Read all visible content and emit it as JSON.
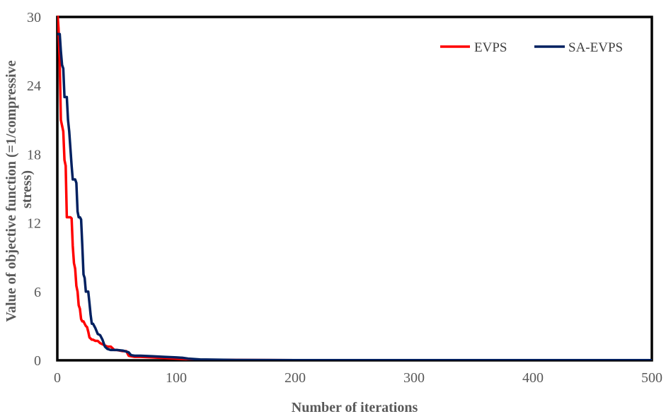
{
  "chart_data": {
    "type": "line",
    "title": "",
    "xlabel": "Number of iterations",
    "ylabel_lines": [
      "Value of objective function (=1/compressive",
      "stress)"
    ],
    "xlim": [
      0,
      500
    ],
    "ylim": [
      0,
      30
    ],
    "xticks": [
      0,
      100,
      200,
      300,
      400,
      500
    ],
    "yticks": [
      0,
      6,
      12,
      18,
      24,
      30
    ],
    "xtick_labels": [
      "0",
      "100",
      "200",
      "300",
      "400",
      "500"
    ],
    "ytick_labels": [
      "0",
      "6",
      "12",
      "18",
      "24",
      "30"
    ],
    "grid": false,
    "legend_position": "top-right",
    "series": [
      {
        "name": "EVPS",
        "color": "#ff0000",
        "x": [
          0,
          1,
          2,
          3,
          4,
          5,
          6,
          7,
          8,
          9,
          10,
          11,
          12,
          13,
          14,
          15,
          16,
          17,
          18,
          19,
          20,
          21,
          22,
          23,
          24,
          25,
          26,
          27,
          28,
          29,
          30,
          32,
          34,
          36,
          38,
          40,
          42,
          45,
          48,
          50,
          55,
          58,
          60,
          62,
          65,
          70,
          80,
          90,
          100,
          110,
          120,
          150,
          200,
          300,
          400,
          500
        ],
        "y": [
          30.5,
          29.0,
          26.0,
          21.0,
          20.5,
          20.0,
          17.5,
          17.0,
          12.5,
          12.5,
          12.5,
          12.5,
          12.4,
          10.0,
          8.5,
          8.0,
          6.5,
          6.0,
          4.8,
          4.5,
          3.6,
          3.4,
          3.4,
          3.2,
          3.0,
          2.9,
          2.5,
          2.0,
          1.9,
          1.8,
          1.8,
          1.7,
          1.7,
          1.5,
          1.4,
          1.3,
          1.2,
          1.2,
          0.9,
          0.9,
          0.8,
          0.8,
          0.4,
          0.35,
          0.3,
          0.3,
          0.25,
          0.2,
          0.15,
          0.1,
          0.05,
          0.03,
          0.02,
          0.01,
          0.01,
          0.01
        ]
      },
      {
        "name": "SA-EVPS",
        "color": "#002060",
        "x": [
          0,
          1,
          2,
          3,
          4,
          5,
          6,
          7,
          8,
          9,
          10,
          11,
          12,
          13,
          14,
          15,
          16,
          17,
          18,
          19,
          20,
          21,
          22,
          23,
          24,
          25,
          26,
          27,
          28,
          29,
          30,
          32,
          34,
          36,
          38,
          40,
          42,
          45,
          48,
          50,
          55,
          60,
          62,
          65,
          70,
          80,
          90,
          100,
          105,
          110,
          120,
          150,
          200,
          300,
          400,
          500
        ],
        "y": [
          28.5,
          28.5,
          28.5,
          27.0,
          25.8,
          25.5,
          23.0,
          23.0,
          23.0,
          21.0,
          20.0,
          18.5,
          17.0,
          15.8,
          15.8,
          15.8,
          15.5,
          13.0,
          12.5,
          12.5,
          12.3,
          10.0,
          7.5,
          7.2,
          6.0,
          6.0,
          6.0,
          5.0,
          4.0,
          3.2,
          3.2,
          2.8,
          2.3,
          2.2,
          1.8,
          1.2,
          1.0,
          0.9,
          0.9,
          0.9,
          0.85,
          0.7,
          0.45,
          0.4,
          0.4,
          0.35,
          0.3,
          0.25,
          0.22,
          0.15,
          0.08,
          0.03,
          0.02,
          0.01,
          0.01,
          0.01
        ]
      }
    ]
  }
}
